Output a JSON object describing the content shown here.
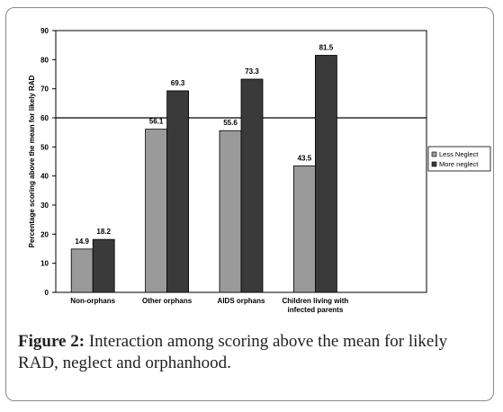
{
  "chart_data": {
    "type": "bar",
    "categories": [
      "Non-orphans",
      "Other orphans",
      "AIDS orphans",
      "Children living with\ninfected parents"
    ],
    "series": [
      {
        "name": "Less Neglect",
        "values": [
          14.9,
          56.1,
          55.6,
          43.5
        ],
        "color": "#9a9a9a"
      },
      {
        "name": "More neglect",
        "values": [
          18.2,
          69.3,
          73.3,
          81.5
        ],
        "color": "#3a3a3a"
      }
    ],
    "data_labels": [
      [
        "14.9",
        "56.1",
        "55.6",
        "43.5"
      ],
      [
        "18.2",
        "69.3",
        "73.3",
        "81.5"
      ]
    ],
    "ylabel": "Percentage scoring above the mean for likely RAD",
    "xlabel": "",
    "ylim": [
      0,
      90
    ],
    "yticks": [
      0,
      10,
      20,
      30,
      40,
      50,
      60,
      70,
      80,
      90
    ],
    "reference_line": 60,
    "grid": false,
    "legend_position": "right"
  },
  "caption": {
    "label": "Figure 2:",
    "text": " Interaction among scoring above the mean for likely RAD, neglect and orphanhood."
  }
}
